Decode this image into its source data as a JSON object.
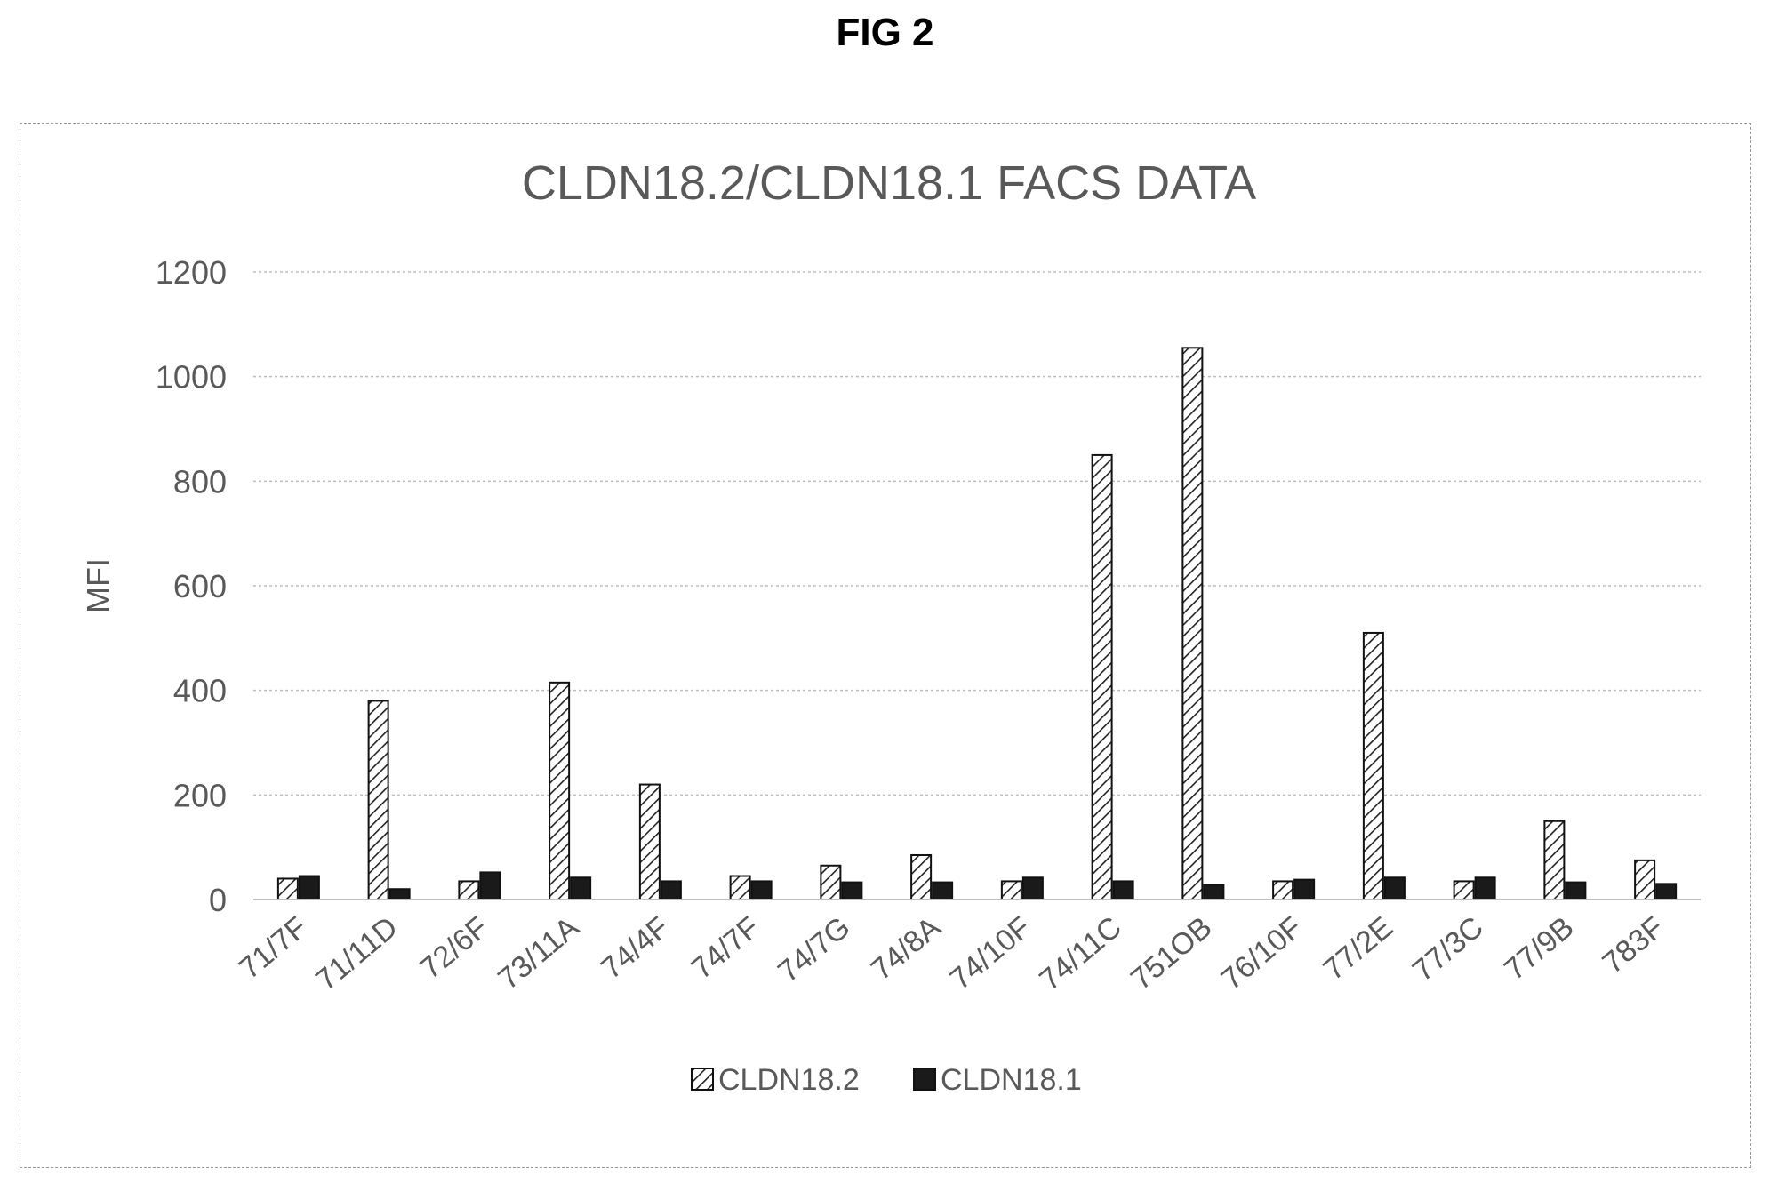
{
  "figure_label": "FIG 2",
  "chart_data": {
    "type": "bar",
    "title": "CLDN18.2/CLDN18.1 FACS DATA",
    "xlabel": "",
    "ylabel": "MFI",
    "ylim": [
      0,
      1200
    ],
    "yticks": [
      0,
      200,
      400,
      600,
      800,
      1000,
      1200
    ],
    "grid": true,
    "legend_position": "bottom",
    "categories": [
      "71/7F",
      "71/11D",
      "72/6F",
      "73/11A",
      "74/4F",
      "74/7F",
      "74/7G",
      "74/8A",
      "74/10F",
      "74/11C",
      "751OB",
      "76/10F",
      "77/2E",
      "77/3C",
      "77/9B",
      "783F"
    ],
    "series": [
      {
        "name": "CLDN18.2",
        "pattern": "hatched",
        "values": [
          40,
          380,
          35,
          415,
          220,
          45,
          65,
          85,
          35,
          850,
          1055,
          35,
          510,
          35,
          150,
          75
        ]
      },
      {
        "name": "CLDN18.1",
        "pattern": "solid",
        "values": [
          45,
          20,
          52,
          42,
          35,
          35,
          33,
          33,
          42,
          35,
          28,
          38,
          42,
          42,
          33,
          30
        ]
      }
    ],
    "colors": {
      "hatch_stroke": "#222222",
      "solid_fill": "#1a1a1a",
      "grid": "#bdbdbd",
      "text": "#595959"
    }
  }
}
